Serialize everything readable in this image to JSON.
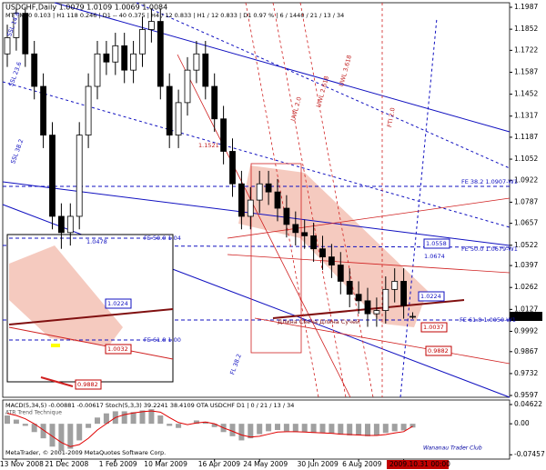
{
  "chart_data": [
    {
      "type": "candlestick",
      "header": "USDCHF,Daily  1.0079 1.0109 1.0069 1.0084",
      "subheader": "MTF M30 0.103 | H1 118 0.246 | D1 -- 40 0.375 | H4 / 12 0.833 | H1 / 12 0.833 | D1 0.97 % | 6 / 1440 / 21 / 13 / 34",
      "categories": [
        null,
        "13 Nov 2008",
        null,
        null,
        null,
        null,
        "21 Dec 2008",
        null,
        null,
        null,
        null,
        null,
        "1 Feb 2009",
        null,
        null,
        null,
        null,
        "10 Mar 2009",
        null,
        null,
        null,
        null,
        null,
        "16 Apr 2009",
        null,
        null,
        null,
        null,
        "24 May 2009",
        null,
        null,
        null,
        null,
        null,
        "30 Jun 2009",
        null,
        null,
        null,
        null,
        "6 Aug 2009",
        null,
        null,
        null,
        null,
        "13 Sep 2009",
        null
      ],
      "open": [
        1.17,
        1.18,
        1.195,
        1.17,
        1.15,
        1.12,
        1.07,
        1.06,
        1.07,
        1.12,
        1.15,
        1.17,
        1.165,
        1.175,
        1.16,
        1.17,
        1.185,
        1.19,
        1.15,
        1.12,
        1.14,
        1.16,
        1.17,
        1.15,
        1.13,
        1.11,
        1.09,
        1.07,
        1.08,
        1.09,
        1.085,
        1.075,
        1.065,
        1.06,
        1.058,
        1.05,
        1.045,
        1.04,
        1.03,
        1.022,
        1.018,
        1.01,
        1.012,
        1.025,
        1.03,
        1.0079
      ],
      "high": [
        1.188,
        1.198,
        1.199,
        1.178,
        1.158,
        1.128,
        1.078,
        1.078,
        1.128,
        1.158,
        1.178,
        1.178,
        1.183,
        1.183,
        1.178,
        1.193,
        1.198,
        1.198,
        1.158,
        1.148,
        1.168,
        1.178,
        1.178,
        1.158,
        1.138,
        1.118,
        1.098,
        1.088,
        1.098,
        1.098,
        1.093,
        1.083,
        1.073,
        1.068,
        1.066,
        1.058,
        1.053,
        1.048,
        1.038,
        1.03,
        1.026,
        1.02,
        1.033,
        1.038,
        1.038,
        1.0109
      ],
      "low": [
        1.162,
        1.172,
        1.162,
        1.142,
        1.112,
        1.062,
        1.05,
        1.052,
        1.062,
        1.112,
        1.142,
        1.157,
        1.157,
        1.152,
        1.152,
        1.162,
        1.177,
        1.142,
        1.112,
        1.112,
        1.132,
        1.152,
        1.142,
        1.122,
        1.102,
        1.082,
        1.062,
        1.062,
        1.072,
        1.077,
        1.067,
        1.057,
        1.052,
        1.05,
        1.042,
        1.037,
        1.032,
        1.022,
        1.014,
        1.01,
        1.002,
        1.002,
        1.004,
        1.017,
        1.007,
        1.0069
      ],
      "close": [
        1.18,
        1.195,
        1.17,
        1.15,
        1.12,
        1.07,
        1.06,
        1.07,
        1.12,
        1.15,
        1.17,
        1.165,
        1.175,
        1.16,
        1.17,
        1.185,
        1.19,
        1.15,
        1.12,
        1.14,
        1.16,
        1.17,
        1.15,
        1.13,
        1.11,
        1.09,
        1.07,
        1.08,
        1.09,
        1.085,
        1.075,
        1.065,
        1.06,
        1.058,
        1.05,
        1.045,
        1.04,
        1.03,
        1.022,
        1.018,
        1.01,
        1.012,
        1.025,
        1.03,
        1.015,
        1.0084
      ],
      "ylim": [
        0.9586,
        1.2015
      ],
      "yticks": [
        1.1987,
        1.1852,
        1.1722,
        1.1587,
        1.1452,
        1.1317,
        1.1187,
        1.1052,
        1.0922,
        1.0787,
        1.0657,
        1.0522,
        1.0397,
        1.0262,
        1.0127,
        0.9992,
        0.9867,
        0.9732,
        0.9597
      ],
      "cursor_label": "2009.10.31 00:00",
      "annotations": [
        "SSL 14.6",
        "SSL 23.6",
        "SSL 38.2",
        "FE 38.2 1.0907-W1",
        "FE 50.0 1.0679-W1",
        "FE 61.8 1.0050-W1",
        "UWL 3.618",
        "UWL 2.618",
        "UWL 2.0",
        "FTI 2.0",
        "Длина Свеча Длина Сучей",
        "1.0558",
        "1.0674",
        "1.0224",
        "1.0037",
        "0.9882",
        "1.1521",
        "FL 38.2",
        "1.0478",
        "FE 50.0 1.04",
        "1.0224",
        "FE 61.8 1.00",
        "1.0032",
        "0.9882"
      ]
    },
    {
      "type": "macd",
      "header": "MACD(5,34,5) -0.00881 -0.00617  Stoch(5,3,3) 39.2241 38.4109  OTA USDCHF D1 | 0 / 21 / 13 / 34",
      "subheader": "ATR Trend Technique",
      "histogram": {
        "color": "#a0a0a0",
        "values": [
          0.02,
          0.01,
          -0.005,
          -0.02,
          -0.035,
          -0.055,
          -0.065,
          -0.06,
          -0.04,
          -0.01,
          0.015,
          0.025,
          0.03,
          0.03,
          0.028,
          0.032,
          0.035,
          0.02,
          -0.005,
          -0.01,
          0.0,
          0.008,
          0.005,
          -0.008,
          -0.02,
          -0.03,
          -0.04,
          -0.035,
          -0.025,
          -0.018,
          -0.015,
          -0.018,
          -0.02,
          -0.02,
          -0.022,
          -0.022,
          -0.024,
          -0.026,
          -0.028,
          -0.028,
          -0.03,
          -0.028,
          -0.022,
          -0.018,
          -0.016,
          -0.009
        ]
      },
      "signal": {
        "color": "#e00000",
        "values": [
          0.025,
          0.02,
          0.012,
          0.0,
          -0.015,
          -0.03,
          -0.045,
          -0.055,
          -0.05,
          -0.035,
          -0.015,
          0.0,
          0.015,
          0.022,
          0.026,
          0.029,
          0.031,
          0.028,
          0.015,
          0.003,
          -0.002,
          0.002,
          0.004,
          0.0,
          -0.01,
          -0.018,
          -0.027,
          -0.032,
          -0.03,
          -0.025,
          -0.02,
          -0.019,
          -0.019,
          -0.02,
          -0.021,
          -0.022,
          -0.023,
          -0.025,
          -0.026,
          -0.027,
          -0.028,
          -0.028,
          -0.026,
          -0.022,
          -0.019,
          -0.006
        ]
      },
      "ylim": [
        -0.085,
        0.055
      ],
      "yticks": [
        0.04622,
        {
          "value": 0,
          "label": "0.00"
        },
        -0.07457
      ],
      "footer": "MetaTrader, © 2001-2009 MetaQuotes Software Corp.",
      "watermark": "Wananau Trader Club"
    }
  ]
}
